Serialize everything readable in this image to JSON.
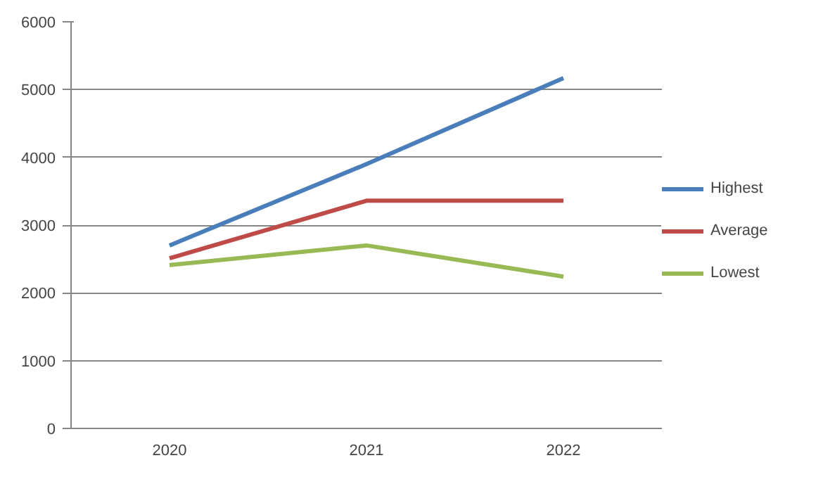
{
  "chart_data": {
    "type": "line",
    "categories": [
      "2020",
      "2021",
      "2022"
    ],
    "series": [
      {
        "name": "Highest",
        "color": "#4a7ebb",
        "values": [
          2700,
          3900,
          5170
        ]
      },
      {
        "name": "Average",
        "color": "#be4b48",
        "values": [
          2510,
          3360,
          3360
        ]
      },
      {
        "name": "Lowest",
        "color": "#98b954",
        "values": [
          2410,
          2700,
          2240
        ]
      }
    ],
    "ylim": [
      0,
      6000
    ],
    "yticks": [
      0,
      1000,
      2000,
      3000,
      4000,
      5000,
      6000
    ],
    "grid": "y",
    "legend": "right",
    "marker": "none",
    "line_style": "solid"
  }
}
